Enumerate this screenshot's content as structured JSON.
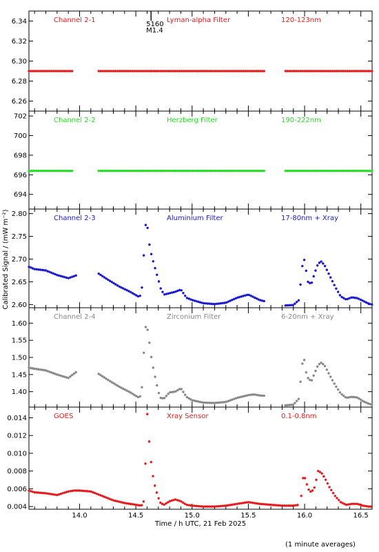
{
  "ylabel": "Calibrated Signal / (mW m⁻²)",
  "xlabel": "Time / h UTC, 21 Feb 2025",
  "footnote": "(1 minute averages)",
  "xlim": [
    13.55,
    16.6
  ],
  "xticks": [
    "14.0",
    "14.5",
    "15.0",
    "15.5",
    "16.0",
    "16.5"
  ],
  "flare_marker": {
    "x": 14.58,
    "line1": "5160",
    "line2": "M1.4"
  },
  "chart_data": [
    {
      "type": "scatter",
      "channel": "Channel 2-1",
      "filter": "Lyman-alpha Filter",
      "band": "120-123nm",
      "color": "#e41a1c",
      "ylim": [
        6.25,
        6.35
      ],
      "yticks": [
        "6.26",
        "6.28",
        "6.30",
        "6.32",
        "6.34"
      ],
      "segments": [
        {
          "x": [
            13.55,
            13.95
          ],
          "y": [
            6.29,
            6.29
          ]
        },
        {
          "x": [
            14.17,
            15.65
          ],
          "y": [
            6.29,
            6.29
          ]
        },
        {
          "x": [
            15.83,
            16.6
          ],
          "y": [
            6.29,
            6.29
          ]
        }
      ]
    },
    {
      "type": "scatter",
      "channel": "Channel 2-2",
      "filter": "Herzberg Filter",
      "band": "190-222nm",
      "color": "#22dd22",
      "ylim": [
        692.5,
        702.5
      ],
      "yticks": [
        "694",
        "696",
        "698",
        "700",
        "702"
      ],
      "segments": [
        {
          "x": [
            13.55,
            13.95
          ],
          "y": [
            696.4,
            696.4
          ]
        },
        {
          "x": [
            14.17,
            15.65
          ],
          "y": [
            696.4,
            696.4
          ]
        },
        {
          "x": [
            15.83,
            16.6
          ],
          "y": [
            696.4,
            696.4
          ]
        }
      ]
    },
    {
      "type": "scatter",
      "channel": "Channel 2-3",
      "filter": "Aluminium Filter",
      "band": "17-80nm + Xray",
      "color": "#1a1acc",
      "ylim": [
        2.593,
        2.81
      ],
      "yticks": [
        "2.60",
        "2.65",
        "2.70",
        "2.75",
        "2.80"
      ],
      "segments": [
        {
          "x": [
            13.55,
            13.6,
            13.7,
            13.8,
            13.9,
            13.98
          ],
          "y": [
            2.683,
            2.678,
            2.675,
            2.665,
            2.658,
            2.665
          ]
        },
        {
          "x": [
            14.17,
            14.25,
            14.35,
            14.45,
            14.52,
            14.55,
            14.57,
            14.59,
            14.6,
            14.62,
            14.64,
            14.66,
            14.68,
            14.7,
            14.72,
            14.75,
            14.8,
            14.85,
            14.9,
            14.95,
            15.0,
            15.1,
            15.2,
            15.3,
            15.4,
            15.5,
            15.55,
            15.6,
            15.65
          ],
          "y": [
            2.668,
            2.655,
            2.64,
            2.628,
            2.618,
            2.62,
            2.705,
            2.785,
            2.778,
            2.733,
            2.708,
            2.69,
            2.672,
            2.655,
            2.636,
            2.622,
            2.625,
            2.628,
            2.633,
            2.615,
            2.61,
            2.603,
            2.601,
            2.604,
            2.615,
            2.622,
            2.616,
            2.61,
            2.607
          ]
        },
        {
          "x": [
            15.83,
            15.9,
            15.95,
            15.97,
            15.99,
            16.01,
            16.03,
            16.06,
            16.09,
            16.12,
            16.15,
            16.18,
            16.22,
            16.27,
            16.32,
            16.37,
            16.42,
            16.47,
            16.52,
            16.57,
            16.6
          ],
          "y": [
            2.598,
            2.599,
            2.61,
            2.66,
            2.708,
            2.68,
            2.65,
            2.645,
            2.67,
            2.69,
            2.695,
            2.685,
            2.665,
            2.64,
            2.618,
            2.611,
            2.616,
            2.614,
            2.608,
            2.602,
            2.6
          ]
        }
      ]
    },
    {
      "type": "scatter",
      "channel": "Channel 2-4",
      "filter": "Zirconium Filter",
      "band": "6-20nm + Xray",
      "color": "#888888",
      "ylim": [
        1.355,
        1.645
      ],
      "yticks": [
        "1.40",
        "1.45",
        "1.50",
        "1.55",
        "1.60"
      ],
      "segments": [
        {
          "x": [
            13.55,
            13.6,
            13.7,
            13.8,
            13.9,
            13.98
          ],
          "y": [
            1.47,
            1.467,
            1.462,
            1.45,
            1.44,
            1.46
          ]
        },
        {
          "x": [
            14.17,
            14.25,
            14.35,
            14.45,
            14.52,
            14.55,
            14.57,
            14.59,
            14.6,
            14.62,
            14.64,
            14.66,
            14.68,
            14.7,
            14.72,
            14.75,
            14.8,
            14.85,
            14.9,
            14.95,
            15.0,
            15.1,
            15.2,
            15.3,
            15.4,
            15.5,
            15.55,
            15.6,
            15.65
          ],
          "y": [
            1.452,
            1.435,
            1.415,
            1.398,
            1.384,
            1.388,
            1.51,
            1.6,
            1.59,
            1.545,
            1.495,
            1.46,
            1.43,
            1.4,
            1.382,
            1.38,
            1.398,
            1.4,
            1.41,
            1.385,
            1.375,
            1.368,
            1.367,
            1.37,
            1.382,
            1.39,
            1.392,
            1.389,
            1.388
          ]
        },
        {
          "x": [
            15.83,
            15.9,
            15.95,
            15.97,
            15.99,
            16.01,
            16.03,
            16.06,
            16.09,
            16.12,
            16.15,
            16.18,
            16.22,
            16.27,
            16.32,
            16.37,
            16.42,
            16.47,
            16.52,
            16.57,
            16.6
          ],
          "y": [
            1.36,
            1.362,
            1.38,
            1.452,
            1.51,
            1.46,
            1.44,
            1.43,
            1.455,
            1.478,
            1.485,
            1.475,
            1.45,
            1.42,
            1.395,
            1.382,
            1.385,
            1.383,
            1.372,
            1.365,
            1.362
          ]
        }
      ]
    },
    {
      "type": "scatter",
      "channel": "GOES",
      "filter": "Xray Sensor",
      "band": "0.1-0.8nm",
      "color": "#e41a1c",
      "ylim": [
        0.0037,
        0.0152
      ],
      "yticks": [
        "0.004",
        "0.006",
        "0.008",
        "0.010",
        "0.012",
        "0.014"
      ],
      "segments": [
        {
          "x": [
            13.55,
            13.6,
            13.7,
            13.8,
            13.9,
            13.95,
            14.0,
            14.1,
            14.2,
            14.3,
            14.4,
            14.5,
            14.55,
            14.57,
            14.59,
            14.6,
            14.62,
            14.64,
            14.66,
            14.68,
            14.7,
            14.72,
            14.75,
            14.8,
            14.85,
            14.9,
            14.95,
            15.0,
            15.1,
            15.2,
            15.3,
            15.4,
            15.5,
            15.6,
            15.7,
            15.8,
            15.9,
            15.95
          ],
          "y": [
            0.0058,
            0.0056,
            0.0055,
            0.0053,
            0.0057,
            0.0058,
            0.0058,
            0.0057,
            0.0052,
            0.0047,
            0.0044,
            0.0042,
            0.0041,
            0.0046,
            0.0101,
            0.0148,
            0.0111,
            0.0084,
            0.0068,
            0.0058,
            0.005,
            0.0044,
            0.0042,
            0.0046,
            0.0048,
            0.0046,
            0.0042,
            0.0041,
            0.004,
            0.004,
            0.0041,
            0.0043,
            0.0045,
            0.0043,
            0.0042,
            0.0041,
            0.0041,
            0.0042
          ]
        },
        {
          "x": [
            15.97,
            15.99,
            16.01,
            16.03,
            16.06,
            16.09,
            16.12,
            16.15,
            16.18,
            16.22,
            16.27,
            16.32,
            16.37,
            16.42,
            16.47,
            16.52,
            16.57,
            16.6
          ],
          "y": [
            0.0052,
            0.0076,
            0.007,
            0.006,
            0.0056,
            0.0062,
            0.008,
            0.0078,
            0.0072,
            0.0062,
            0.0052,
            0.0045,
            0.0042,
            0.0043,
            0.0043,
            0.0041,
            0.004,
            0.004
          ]
        }
      ]
    }
  ]
}
